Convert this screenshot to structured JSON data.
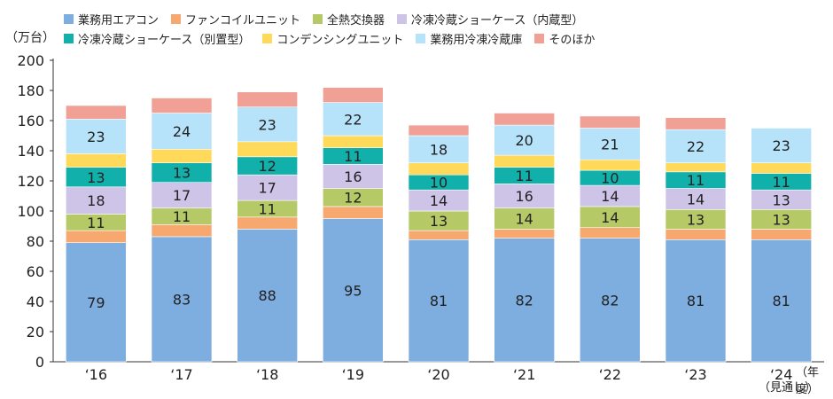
{
  "chart_data": {
    "type": "bar",
    "stacked": true,
    "unit": "（万台）",
    "x_suffix": "（年度）",
    "note": "（見通し）",
    "categories": [
      "‘16",
      "‘17",
      "‘18",
      "‘19",
      "‘20",
      "‘21",
      "‘22",
      "‘23",
      "‘24"
    ],
    "ylim": [
      0,
      200
    ],
    "yticks": [
      0,
      20,
      40,
      60,
      80,
      100,
      120,
      140,
      160,
      180,
      200
    ],
    "legend_rows": [
      [
        0,
        1,
        2,
        3
      ],
      [
        4,
        5,
        6,
        7
      ]
    ],
    "series": [
      {
        "name": "業務用エアコン",
        "color": "#7eaee0",
        "values": [
          79,
          83,
          88,
          95,
          81,
          82,
          82,
          81,
          81
        ],
        "labels": [
          "79",
          "83",
          "88",
          "95",
          "81",
          "82",
          "82",
          "81",
          "81"
        ]
      },
      {
        "name": "ファンコイルユニット",
        "color": "#f7a86e",
        "values": [
          8,
          8,
          8,
          8,
          6,
          6,
          7,
          7,
          7
        ],
        "labels": [
          "",
          "",
          "",
          "",
          "",
          "",
          "",
          "",
          ""
        ]
      },
      {
        "name": "全熱交換器",
        "color": "#b5c966",
        "values": [
          11,
          11,
          11,
          12,
          13,
          14,
          14,
          13,
          13
        ],
        "labels": [
          "11",
          "11",
          "11",
          "12",
          "13",
          "14",
          "14",
          "13",
          "13"
        ]
      },
      {
        "name": "冷凍冷蔵ショーケース（内蔵型）",
        "color": "#cdc4e8",
        "values": [
          18,
          17,
          17,
          16,
          14,
          16,
          14,
          14,
          13
        ],
        "labels": [
          "18",
          "17",
          "17",
          "16",
          "14",
          "16",
          "14",
          "14",
          "13"
        ]
      },
      {
        "name": "冷凍冷蔵ショーケース（別置型）",
        "color": "#12b0aa",
        "values": [
          13,
          13,
          12,
          11,
          10,
          11,
          10,
          11,
          11
        ],
        "labels": [
          "13",
          "13",
          "12",
          "11",
          "10",
          "11",
          "10",
          "11",
          "11"
        ]
      },
      {
        "name": "コンデンシングユニット",
        "color": "#ffd95a",
        "values": [
          9,
          9,
          10,
          8,
          8,
          8,
          7,
          6,
          7
        ],
        "labels": [
          "",
          "",
          "",
          "",
          "",
          "",
          "",
          "",
          ""
        ]
      },
      {
        "name": "業務用冷凍冷蔵庫",
        "color": "#b6e2fa",
        "values": [
          23,
          24,
          23,
          22,
          18,
          20,
          21,
          22,
          23
        ],
        "labels": [
          "23",
          "24",
          "23",
          "22",
          "18",
          "20",
          "21",
          "22",
          "23"
        ]
      },
      {
        "name": "そのほか",
        "color": "#f1a096",
        "values": [
          9,
          10,
          10,
          10,
          7,
          8,
          8,
          8,
          0
        ],
        "labels": [
          "",
          "",
          "",
          "",
          "",
          "",
          "",
          "",
          ""
        ]
      }
    ]
  }
}
